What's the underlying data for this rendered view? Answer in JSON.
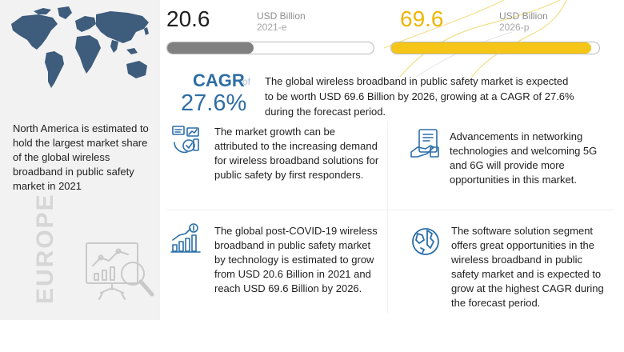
{
  "market_2021": {
    "value": "20.6",
    "unit": "USD Billion",
    "period": "2021-e",
    "bar_fraction": 0.42
  },
  "market_2026": {
    "value": "69.6",
    "unit": "USD Billion",
    "period": "2026-p",
    "bar_fraction": 0.96
  },
  "cagr": {
    "label": "CAGR",
    "of": "of",
    "value": "27.6%",
    "summary": "The global wireless broadband in public safety market is expected to be worth USD 69.6 Billion by 2026, growing at a CAGR of 27.6% during the forecast period."
  },
  "region": {
    "description": "North America is estimated to hold the largest market share of the global wireless broadband in public safety market in 2021",
    "highlight": "EUROPE"
  },
  "points": [
    {
      "icon": "market-growth-icon",
      "text": "The market growth can be attributed to the increasing demand for wireless broadband solutions for public safety by first responders."
    },
    {
      "icon": "networking-technology-icon",
      "text": "Advancements in networking technologies and welcoming 5G and 6G will provide more opportunities in this market."
    },
    {
      "icon": "growth-chart-icon",
      "text": "The global post-COVID-19 wireless broadband in public safety market by technology is estimated to grow from USD 20.6 Billion in 2021 and reach USD 69.6 Billion by 2026."
    },
    {
      "icon": "globe-icon",
      "text": "The software solution segment offers great opportunities in the wireless broadband in public safety market and is expected to grow at the highest CAGR during the forecast period."
    }
  ],
  "colors": {
    "bar_2021": "#808080",
    "bar_2026": "#f5c518",
    "accent_blue": "#2e6da4",
    "icon_blue": "#2b6ea8",
    "value_2026": "#f0b400",
    "left_panel_bg": "#f2f2f2",
    "map_color": "#3e5c7c"
  }
}
